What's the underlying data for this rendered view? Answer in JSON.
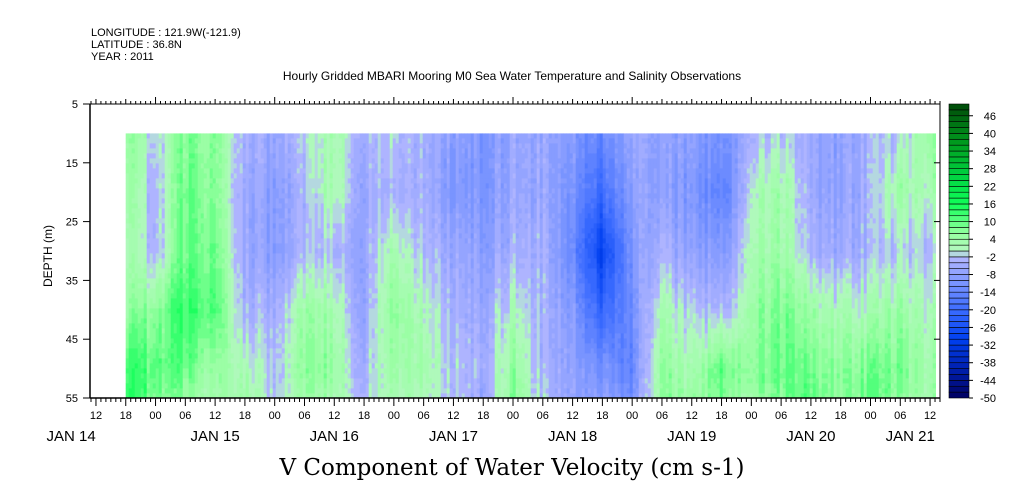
{
  "header": {
    "longitude": "LONGITUDE : 121.9W(-121.9)",
    "latitude": "LATITUDE : 36.8N",
    "year": "YEAR : 2011"
  },
  "chart_data": {
    "type": "heatmap",
    "title": "Hourly Gridded MBARI Mooring M0 Sea Water Temperature and Salinity Observations",
    "subtitle": "V Component of Water Velocity (cm s-1)",
    "ylabel": "DEPTH (m)",
    "ylim": [
      5,
      55
    ],
    "y_inverted": true,
    "y_ticks": [
      "5",
      "15",
      "25",
      "35",
      "45",
      "55"
    ],
    "y_tick_values": [
      5,
      15,
      25,
      35,
      45,
      55
    ],
    "xlim_hours_from_jan14_00": [
      10.8,
      182
    ],
    "x_hour_labels": [
      "12",
      "18",
      "00",
      "06",
      "12",
      "18",
      "00",
      "06",
      "12",
      "18",
      "00",
      "06",
      "12",
      "18",
      "00",
      "06",
      "12",
      "18",
      "00",
      "06",
      "12",
      "18",
      "00",
      "06",
      "12",
      "18",
      "00",
      "06",
      "12"
    ],
    "x_hour_label_start": 12,
    "x_date_labels": [
      {
        "label": "JAN 14",
        "hour": 7
      },
      {
        "label": "JAN 15",
        "hour": 36
      },
      {
        "label": "JAN 16",
        "hour": 60
      },
      {
        "label": "JAN 17",
        "hour": 84
      },
      {
        "label": "JAN 18",
        "hour": 108
      },
      {
        "label": "JAN 19",
        "hour": 132
      },
      {
        "label": "JAN 20",
        "hour": 156
      },
      {
        "label": "JAN 21",
        "hour": 176
      }
    ],
    "depths": [
      10,
      20,
      30,
      40,
      50,
      55
    ],
    "time_hours_from_jan14_00": [
      18,
      24,
      30,
      36,
      42,
      48,
      54,
      60,
      66,
      72,
      78,
      84,
      90,
      96,
      102,
      108,
      114,
      120,
      126,
      132,
      138,
      144,
      150,
      156,
      162,
      168,
      174,
      180
    ],
    "values_by_time": [
      [
        8,
        6,
        4,
        6,
        14,
        16
      ],
      [
        -2,
        -4,
        -4,
        6,
        10,
        8
      ],
      [
        8,
        10,
        10,
        14,
        10,
        6
      ],
      [
        6,
        6,
        8,
        10,
        4,
        2
      ],
      [
        -4,
        -6,
        -6,
        -4,
        2,
        4
      ],
      [
        -6,
        -8,
        -8,
        -4,
        -2,
        -2
      ],
      [
        -2,
        -4,
        -4,
        4,
        6,
        4
      ],
      [
        4,
        4,
        -2,
        4,
        6,
        4
      ],
      [
        -4,
        -6,
        -6,
        -6,
        -4,
        -2
      ],
      [
        -2,
        -4,
        2,
        6,
        4,
        2
      ],
      [
        -4,
        -4,
        -2,
        2,
        4,
        2
      ],
      [
        -8,
        -10,
        -6,
        -4,
        -2,
        -2
      ],
      [
        -10,
        -10,
        -8,
        -6,
        -4,
        -6
      ],
      [
        -6,
        -6,
        -4,
        2,
        6,
        8
      ],
      [
        -6,
        -6,
        -4,
        -4,
        -4,
        -2
      ],
      [
        -8,
        -10,
        -12,
        -8,
        -6,
        -6
      ],
      [
        -14,
        -20,
        -30,
        -22,
        -12,
        -8
      ],
      [
        -6,
        -8,
        -10,
        -12,
        -14,
        -12
      ],
      [
        -8,
        -8,
        -4,
        2,
        6,
        6
      ],
      [
        -8,
        -10,
        -8,
        -2,
        2,
        4
      ],
      [
        -12,
        -16,
        -10,
        -4,
        10,
        8
      ],
      [
        -2,
        2,
        4,
        6,
        8,
        6
      ],
      [
        -2,
        4,
        4,
        8,
        10,
        8
      ],
      [
        -6,
        -6,
        -4,
        4,
        8,
        10
      ],
      [
        -8,
        -8,
        -6,
        2,
        6,
        6
      ],
      [
        -4,
        -4,
        -4,
        2,
        8,
        10
      ],
      [
        -2,
        4,
        -2,
        4,
        8,
        6
      ],
      [
        6,
        2,
        -2,
        2,
        4,
        4
      ]
    ],
    "colorbar": {
      "min": -50,
      "max": 50,
      "step": 2,
      "labels": [
        "46",
        "40",
        "34",
        "28",
        "22",
        "16",
        "10",
        "4",
        "-2",
        "-8",
        "-14",
        "-20",
        "-26",
        "-32",
        "-38",
        "-44",
        "-50"
      ],
      "label_values": [
        46,
        40,
        34,
        28,
        22,
        16,
        10,
        4,
        -2,
        -8,
        -14,
        -20,
        -26,
        -32,
        -38,
        -44,
        -50
      ],
      "anchors": [
        {
          "v": -50,
          "c": "#000060"
        },
        {
          "v": -40,
          "c": "#0020b0"
        },
        {
          "v": -30,
          "c": "#0040f0"
        },
        {
          "v": -20,
          "c": "#3c6cff"
        },
        {
          "v": -10,
          "c": "#8098ff"
        },
        {
          "v": -2,
          "c": "#b4b8ff"
        },
        {
          "v": 0,
          "c": "#b4f8c0"
        },
        {
          "v": 6,
          "c": "#96ffa0"
        },
        {
          "v": 16,
          "c": "#10ff58"
        },
        {
          "v": 26,
          "c": "#00d040"
        },
        {
          "v": 36,
          "c": "#00a020"
        },
        {
          "v": 50,
          "c": "#004a08"
        }
      ]
    }
  }
}
